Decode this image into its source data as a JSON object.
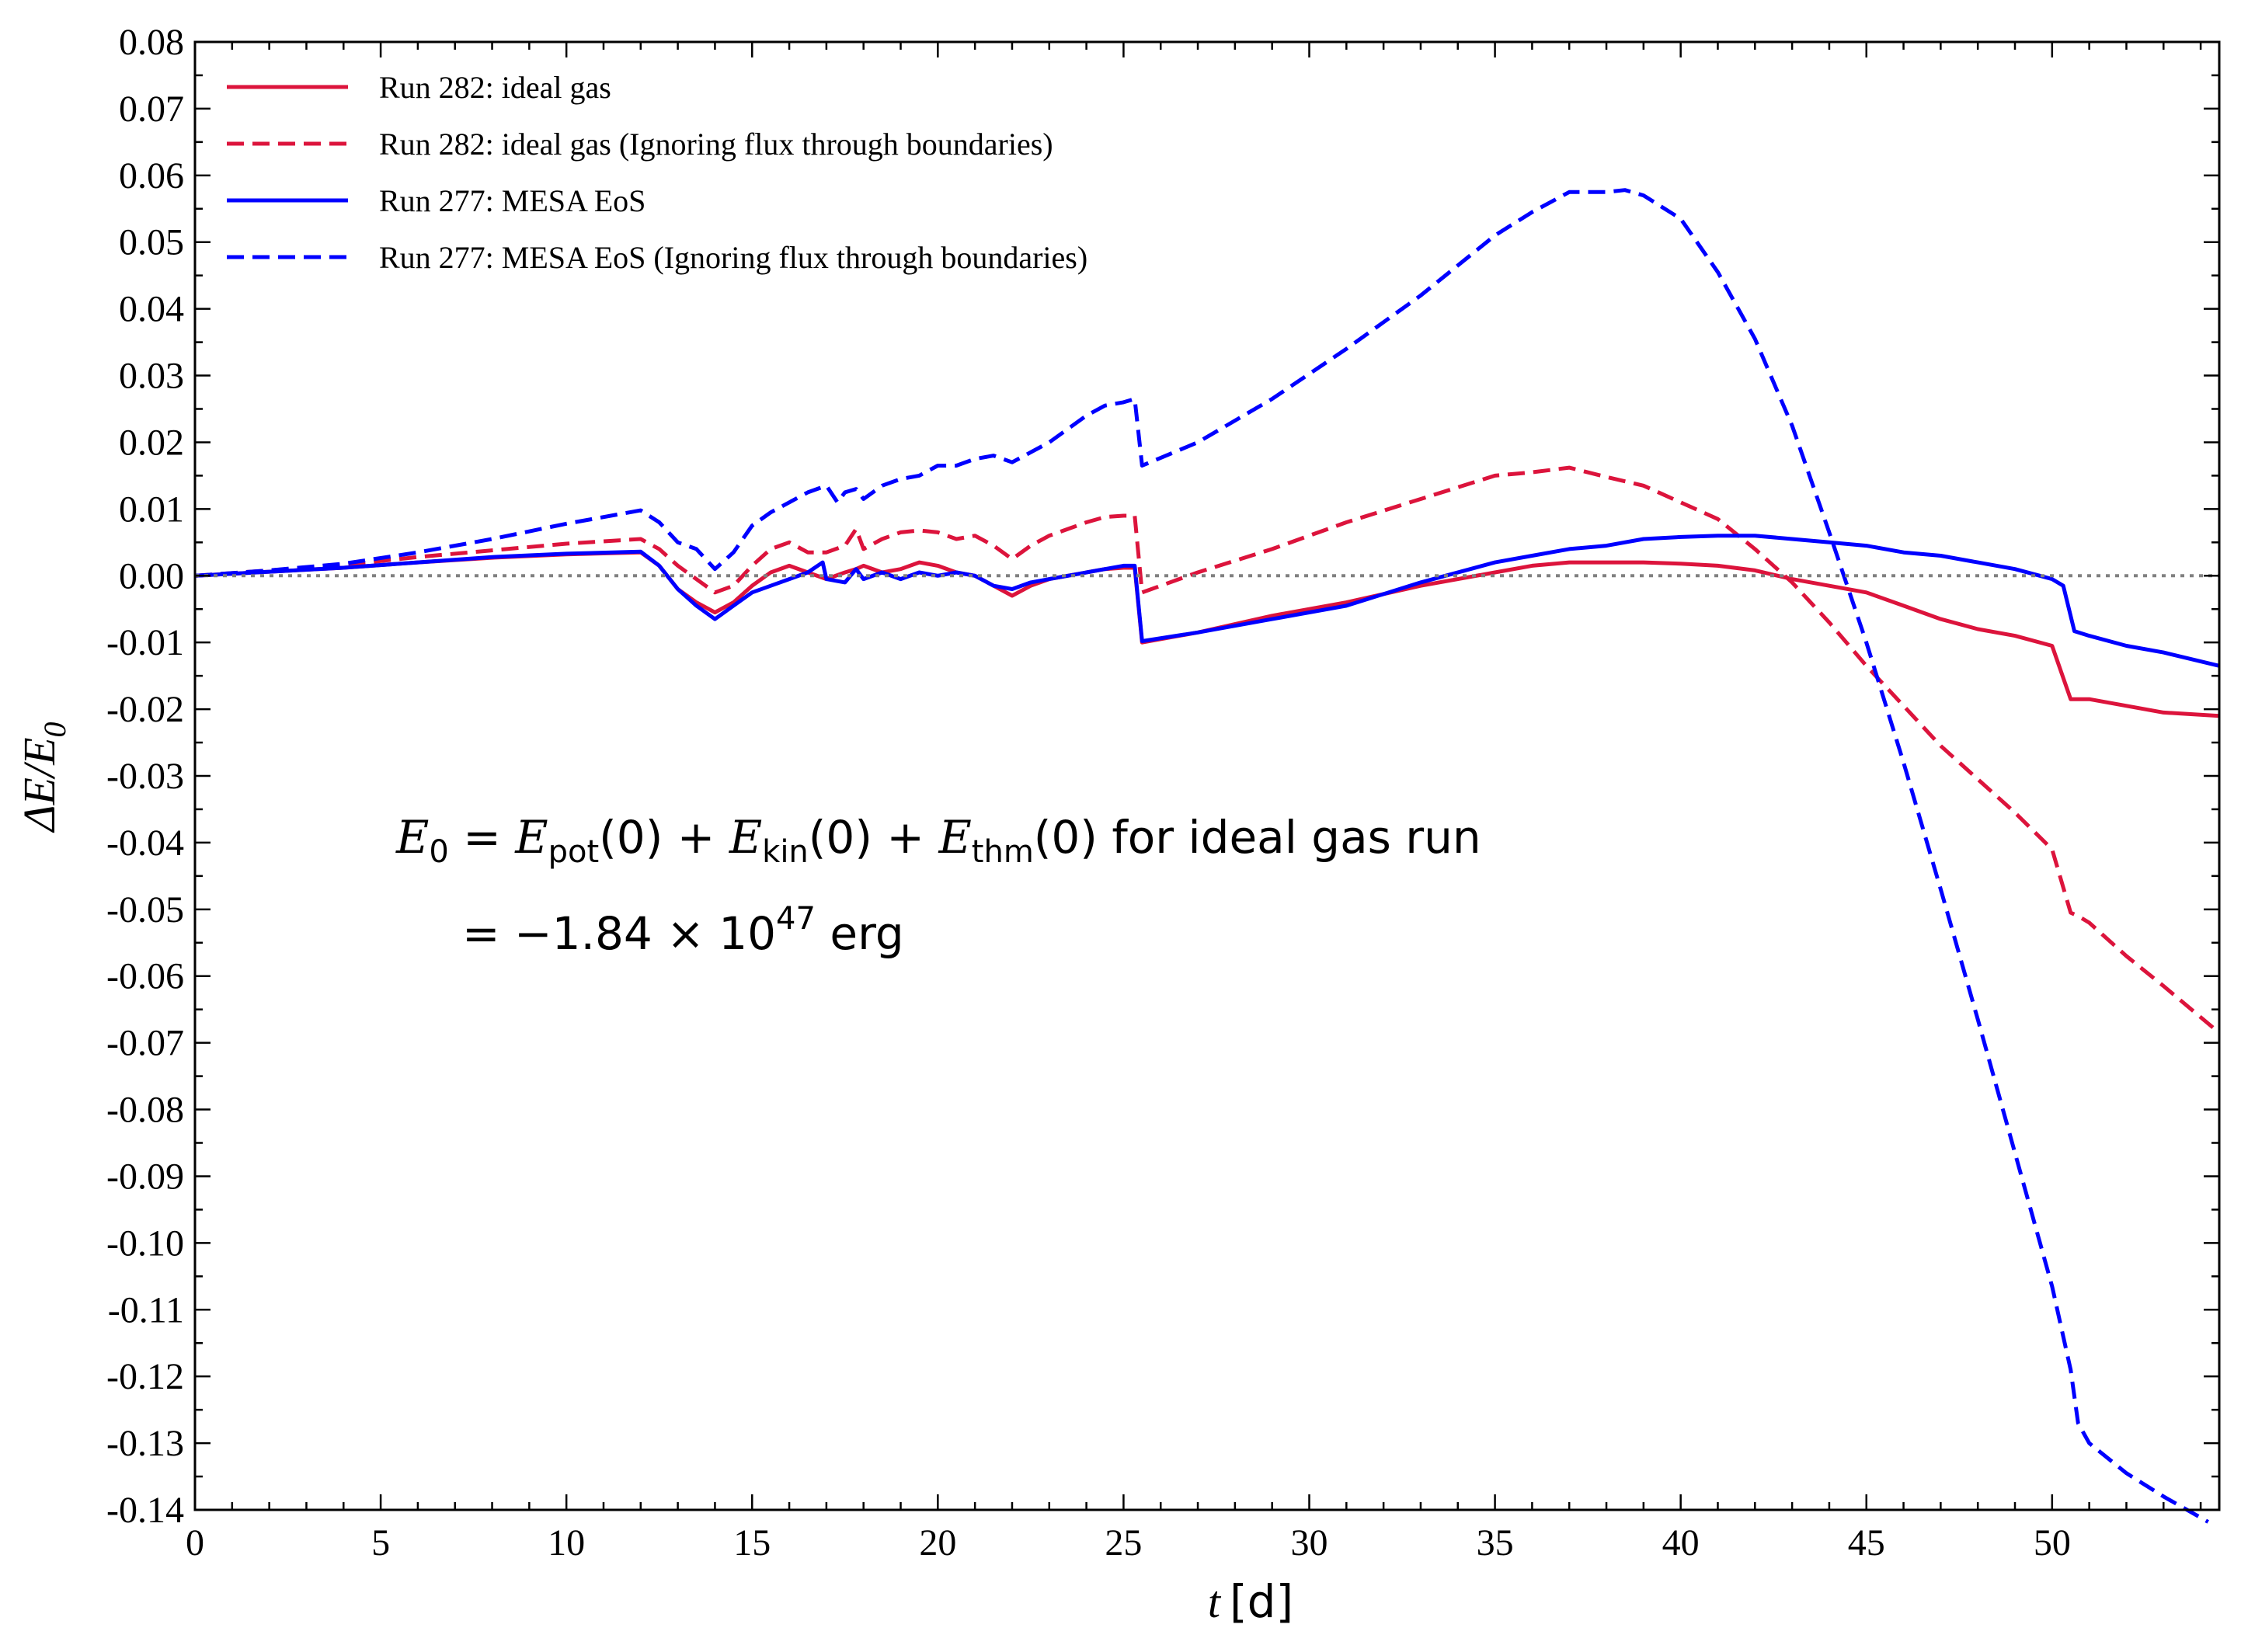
{
  "chart_data": {
    "type": "line",
    "xlabel_var": "t",
    "xlabel_unit": "[d]",
    "ylabel": "ΔE/E",
    "ylabel_sub": "0",
    "xlim": [
      0,
      54.5
    ],
    "ylim": [
      -0.14,
      0.08
    ],
    "x_ticks": [
      0,
      5,
      10,
      15,
      20,
      25,
      30,
      35,
      40,
      45,
      50
    ],
    "y_ticks": [
      0.08,
      0.07,
      0.06,
      0.05,
      0.04,
      0.03,
      0.02,
      0.01,
      0.0,
      -0.01,
      -0.02,
      -0.03,
      -0.04,
      -0.05,
      -0.06,
      -0.07,
      -0.08,
      -0.09,
      -0.1,
      -0.11,
      -0.12,
      -0.13,
      -0.14
    ],
    "x_tick_labels": [
      "0",
      "5",
      "10",
      "15",
      "20",
      "25",
      "30",
      "35",
      "40",
      "45",
      "50"
    ],
    "y_tick_labels": [
      "0.08",
      "0.07",
      "0.06",
      "0.05",
      "0.04",
      "0.03",
      "0.02",
      "0.01",
      "0.00",
      "-0.01",
      "-0.02",
      "-0.03",
      "-0.04",
      "-0.05",
      "-0.06",
      "-0.07",
      "-0.08",
      "-0.09",
      "-0.10",
      "-0.11",
      "-0.12",
      "-0.13",
      "-0.14"
    ],
    "reference_line": {
      "y": 0,
      "style": "dotted",
      "color": "#808080"
    },
    "legend_position": "top-left",
    "series": [
      {
        "name": "Run 282: ideal gas",
        "color": "#DC143C",
        "dash": "solid",
        "x": [
          0,
          2,
          4,
          6,
          8,
          10,
          12,
          12.5,
          13,
          13.5,
          14,
          14.5,
          15,
          15.5,
          16,
          16.5,
          17,
          17.5,
          17.8,
          18,
          18.5,
          19,
          19.5,
          20,
          20.5,
          21,
          21.5,
          22,
          22.5,
          23,
          23.5,
          24,
          24.5,
          25,
          25.3,
          25.5,
          27,
          29,
          31,
          33,
          35,
          36,
          37,
          38,
          39,
          40,
          41,
          42,
          43,
          44,
          45,
          46,
          47,
          48,
          49,
          50,
          50.5,
          50.7,
          51,
          52,
          53,
          54.5
        ],
        "values": [
          0.0,
          0.0006,
          0.0012,
          0.002,
          0.0027,
          0.0032,
          0.0035,
          0.0015,
          -0.002,
          -0.004,
          -0.0055,
          -0.004,
          -0.0015,
          0.0005,
          0.0015,
          0.0005,
          -0.0005,
          0.0005,
          0.001,
          0.0015,
          0.0005,
          0.001,
          0.002,
          0.0015,
          0.0005,
          0.0,
          -0.0015,
          -0.003,
          -0.0015,
          -0.0005,
          0.0,
          0.0005,
          0.001,
          0.0012,
          0.0012,
          -0.01,
          -0.0085,
          -0.006,
          -0.004,
          -0.0015,
          0.0005,
          0.0015,
          0.002,
          0.002,
          0.002,
          0.0018,
          0.0015,
          0.0008,
          -0.0005,
          -0.0015,
          -0.0025,
          -0.0045,
          -0.0065,
          -0.008,
          -0.009,
          -0.0105,
          -0.0185,
          -0.0185,
          -0.0185,
          -0.0195,
          -0.0205,
          -0.021
        ]
      },
      {
        "name": "Run 282: ideal gas (Ignoring flux through boundaries)",
        "color": "#DC143C",
        "dash": "dashed",
        "x": [
          0,
          2,
          4,
          6,
          8,
          10,
          12,
          12.5,
          13,
          13.5,
          14,
          14.5,
          15,
          15.5,
          16,
          16.5,
          17,
          17.5,
          17.8,
          18,
          18.5,
          19,
          19.5,
          20,
          20.5,
          21,
          21.5,
          22,
          22.5,
          23,
          23.5,
          24,
          24.5,
          25,
          25.3,
          25.5,
          27,
          29,
          31,
          33,
          35,
          36,
          37,
          38,
          39,
          40,
          41,
          42,
          43,
          44,
          45,
          46,
          47,
          48,
          49,
          50,
          50.5,
          50.7,
          51,
          52,
          53,
          54.5
        ],
        "values": [
          0.0,
          0.0008,
          0.0016,
          0.0028,
          0.0038,
          0.0048,
          0.0055,
          0.004,
          0.0015,
          -0.0005,
          -0.0025,
          -0.0015,
          0.0015,
          0.004,
          0.005,
          0.0035,
          0.0035,
          0.0045,
          0.007,
          0.004,
          0.0055,
          0.0065,
          0.0068,
          0.0065,
          0.0055,
          0.006,
          0.0045,
          0.0025,
          0.0045,
          0.006,
          0.007,
          0.008,
          0.0088,
          0.009,
          0.009,
          -0.0025,
          0.0005,
          0.004,
          0.008,
          0.0115,
          0.015,
          0.0155,
          0.0162,
          0.0148,
          0.0135,
          0.011,
          0.0085,
          0.004,
          -0.001,
          -0.007,
          -0.0135,
          -0.0195,
          -0.0255,
          -0.0305,
          -0.0355,
          -0.041,
          -0.0505,
          -0.051,
          -0.052,
          -0.057,
          -0.0615,
          -0.0685
        ]
      },
      {
        "name": "Run 277: MESA EoS",
        "color": "#0000FF",
        "dash": "solid",
        "x": [
          0,
          2,
          4,
          6,
          8,
          10,
          12,
          12.5,
          13,
          13.5,
          14,
          14.5,
          15,
          15.5,
          16,
          16.5,
          16.9,
          17,
          17.5,
          17.8,
          18,
          18.5,
          19,
          19.5,
          20,
          20.5,
          21,
          21.5,
          22,
          22.5,
          23,
          23.5,
          24,
          24.5,
          25,
          25.3,
          25.5,
          27,
          29,
          31,
          33,
          35,
          36,
          37,
          38,
          39,
          40,
          41,
          42,
          43,
          44,
          45,
          46,
          47,
          48,
          49,
          50,
          50.3,
          50.6,
          51,
          52,
          53,
          54.5
        ],
        "values": [
          0.0,
          0.0006,
          0.0012,
          0.002,
          0.0028,
          0.0033,
          0.0036,
          0.0015,
          -0.002,
          -0.0045,
          -0.0065,
          -0.0045,
          -0.0025,
          -0.0015,
          -0.0005,
          0.0005,
          0.002,
          -0.0005,
          -0.001,
          0.001,
          -0.0005,
          0.0005,
          -0.0005,
          0.0005,
          0.0,
          0.0005,
          0.0,
          -0.0015,
          -0.002,
          -0.001,
          -0.0005,
          0.0,
          0.0005,
          0.001,
          0.0015,
          0.0015,
          -0.0098,
          -0.0085,
          -0.0065,
          -0.0045,
          -0.001,
          0.002,
          0.003,
          0.004,
          0.0045,
          0.0055,
          0.0058,
          0.006,
          0.006,
          0.0055,
          0.005,
          0.0045,
          0.0035,
          0.003,
          0.002,
          0.001,
          -0.0005,
          -0.0015,
          -0.0083,
          -0.009,
          -0.0105,
          -0.0115,
          -0.0135
        ]
      },
      {
        "name": "Run 277: MESA EoS (Ignoring flux through boundaries)",
        "color": "#0000FF",
        "dash": "dashed",
        "x": [
          0,
          2,
          4,
          6,
          8,
          10,
          12,
          12.5,
          13,
          13.5,
          14,
          14.5,
          15,
          15.5,
          16,
          16.5,
          17,
          17.3,
          17.5,
          17.8,
          18,
          18.5,
          19,
          19.5,
          20,
          20.5,
          21,
          21.5,
          22,
          22.5,
          23,
          23.5,
          24,
          24.5,
          25,
          25.3,
          25.5,
          27,
          29,
          31,
          33,
          35,
          36,
          37,
          38,
          38.5,
          39,
          40,
          41,
          42,
          43,
          44,
          45,
          46,
          47,
          48,
          49,
          50,
          50.5,
          50.7,
          51,
          52,
          53,
          54.2
        ],
        "values": [
          0.0,
          0.0008,
          0.0018,
          0.0035,
          0.0055,
          0.0078,
          0.0098,
          0.008,
          0.005,
          0.004,
          0.001,
          0.0035,
          0.0075,
          0.0095,
          0.011,
          0.0125,
          0.0135,
          0.011,
          0.0125,
          0.013,
          0.0115,
          0.0135,
          0.0145,
          0.015,
          0.0165,
          0.0165,
          0.0175,
          0.018,
          0.017,
          0.0185,
          0.02,
          0.022,
          0.024,
          0.0255,
          0.026,
          0.0265,
          0.0165,
          0.02,
          0.0265,
          0.034,
          0.042,
          0.051,
          0.0545,
          0.0575,
          0.0575,
          0.0578,
          0.057,
          0.0535,
          0.0455,
          0.0355,
          0.0225,
          0.0065,
          -0.01,
          -0.028,
          -0.047,
          -0.0665,
          -0.0865,
          -0.1065,
          -0.119,
          -0.127,
          -0.13,
          -0.1345,
          -0.138,
          -0.1418
        ]
      }
    ]
  },
  "legend": {
    "items": [
      {
        "label": "Run 282: ideal gas",
        "color": "#DC143C",
        "dash": "solid"
      },
      {
        "label": "Run 282: ideal gas (Ignoring flux through boundaries)",
        "color": "#DC143C",
        "dash": "dashed"
      },
      {
        "label": "Run 277: MESA EoS",
        "color": "#0000FF",
        "dash": "solid"
      },
      {
        "label": "Run 277: MESA EoS (Ignoring flux through boundaries)",
        "color": "#0000FF",
        "dash": "dashed"
      }
    ]
  },
  "annotation": {
    "line1": {
      "e0": "E",
      "e0_sub": "0",
      "eq": " = ",
      "epot": "E",
      "epot_sub": "pot",
      "epot_arg": "(0) + ",
      "ekin": "E",
      "ekin_sub": "kin",
      "ekin_arg": "(0) + ",
      "ethm": "E",
      "ethm_sub": "thm",
      "ethm_arg": "(0) for ideal gas run"
    },
    "line2": {
      "prefix": "= −1.84 × 10",
      "exponent": "47",
      "unit": " erg"
    }
  }
}
